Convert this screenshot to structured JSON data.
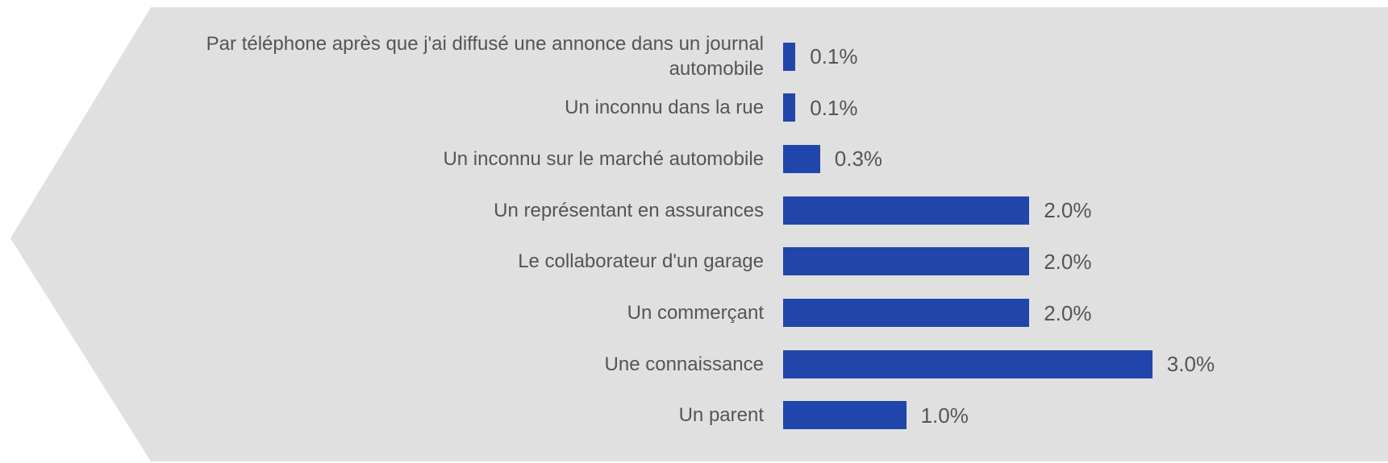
{
  "chart_data": {
    "type": "bar",
    "orientation": "horizontal",
    "categories": [
      "Par téléphone après que j'ai diffusé une annonce dans un journal automobile",
      "Un inconnu dans la rue",
      "Un inconnu sur le marché automobile",
      "Un représentant en assurances",
      "Le collaborateur d'un garage",
      "Un commerçant",
      "Une connaissance",
      "Un parent"
    ],
    "values": [
      0.1,
      0.1,
      0.3,
      2.0,
      2.0,
      2.0,
      3.0,
      1.0
    ],
    "value_labels": [
      "0.1%",
      "0.1%",
      "0.3%",
      "2.0%",
      "2.0%",
      "2.0%",
      "3.0%",
      "1.0%"
    ],
    "color": "#2146ab"
  }
}
